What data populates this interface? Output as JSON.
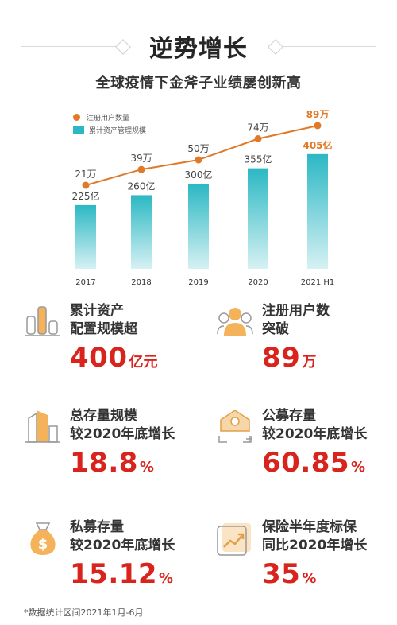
{
  "header": {
    "title": "逆势增长",
    "subtitle": "全球疫情下金斧子业绩屡创新高"
  },
  "chart_data": {
    "type": "bar",
    "categories": [
      "2017",
      "2018",
      "2019",
      "2020",
      "2021 H1"
    ],
    "series": [
      {
        "name": "累计资产管理规模",
        "kind": "bar",
        "values": [
          225,
          260,
          300,
          355,
          405
        ],
        "labels": [
          "225亿",
          "260亿",
          "300亿",
          "355亿",
          "405亿"
        ],
        "color": "#2bb8c4"
      },
      {
        "name": "注册用户数量",
        "kind": "line",
        "values": [
          21,
          39,
          50,
          74,
          89
        ],
        "labels": [
          "21万",
          "39万",
          "50万",
          "74万",
          "89万"
        ],
        "color": "#e07a28"
      }
    ],
    "highlight_color": "#e07a28",
    "grid": false
  },
  "stats": [
    {
      "label1": "累计资产",
      "label2": "配置规模超",
      "value": "400",
      "unit": "亿元",
      "icon": "bar-chart-icon"
    },
    {
      "label1": "注册用户数",
      "label2": "突破",
      "value": "89",
      "unit": "万",
      "icon": "users-icon"
    },
    {
      "label1": "总存量规模",
      "label2": "较2020年底增长",
      "value": "18.8",
      "unit": "%",
      "icon": "buildings-icon"
    },
    {
      "label1": "公募存量",
      "label2": "较2020年底增长",
      "value": "60.85",
      "unit": "%",
      "icon": "house-icon"
    },
    {
      "label1": "私募存量",
      "label2": "较2020年底增长",
      "value": "15.12",
      "unit": "%",
      "icon": "money-bag-icon"
    },
    {
      "label1": "保险半年度标保",
      "label2": "同比2020年增长",
      "value": "35",
      "unit": "%",
      "icon": "trend-icon"
    }
  ],
  "footnote": "*数据统计区间2021年1月-6月",
  "colors": {
    "accent": "#d9231d",
    "bar": "#2bb8c4",
    "line": "#e07a28"
  }
}
